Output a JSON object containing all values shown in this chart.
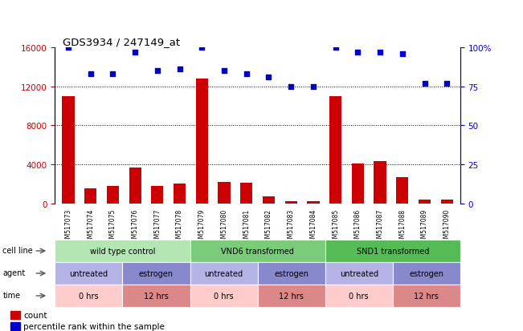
{
  "title": "GDS3934 / 247149_at",
  "samples": [
    "GSM517073",
    "GSM517074",
    "GSM517075",
    "GSM517076",
    "GSM517077",
    "GSM517078",
    "GSM517079",
    "GSM517080",
    "GSM517081",
    "GSM517082",
    "GSM517083",
    "GSM517084",
    "GSM517085",
    "GSM517086",
    "GSM517087",
    "GSM517088",
    "GSM517089",
    "GSM517090"
  ],
  "counts": [
    11000,
    1500,
    1800,
    3700,
    1800,
    2000,
    12800,
    2200,
    2100,
    700,
    200,
    250,
    11000,
    4100,
    4300,
    2700,
    350,
    400
  ],
  "percentile": [
    100,
    83,
    83,
    97,
    85,
    86,
    100,
    85,
    83,
    81,
    75,
    75,
    100,
    97,
    97,
    96,
    77,
    77
  ],
  "bar_color": "#cc0000",
  "dot_color": "#0000cc",
  "ylim_left": [
    0,
    16000
  ],
  "ylim_right": [
    0,
    100
  ],
  "yticks_left": [
    0,
    4000,
    8000,
    12000,
    16000
  ],
  "yticks_right": [
    0,
    25,
    50,
    75,
    100
  ],
  "yticklabels_right": [
    "0",
    "25",
    "50",
    "75",
    "100%"
  ],
  "cell_line_groups": [
    {
      "label": "wild type control",
      "start": 0,
      "end": 6,
      "color": "#b3e6b3"
    },
    {
      "label": "VND6 transformed",
      "start": 6,
      "end": 12,
      "color": "#7acc7a"
    },
    {
      "label": "SND1 transformed",
      "start": 12,
      "end": 18,
      "color": "#55bb55"
    }
  ],
  "agent_groups": [
    {
      "label": "untreated",
      "start": 0,
      "end": 3,
      "color": "#b3b3e6"
    },
    {
      "label": "estrogen",
      "start": 3,
      "end": 6,
      "color": "#8888cc"
    },
    {
      "label": "untreated",
      "start": 6,
      "end": 9,
      "color": "#b3b3e6"
    },
    {
      "label": "estrogen",
      "start": 9,
      "end": 12,
      "color": "#8888cc"
    },
    {
      "label": "untreated",
      "start": 12,
      "end": 15,
      "color": "#b3b3e6"
    },
    {
      "label": "estrogen",
      "start": 15,
      "end": 18,
      "color": "#8888cc"
    }
  ],
  "time_groups": [
    {
      "label": "0 hrs",
      "start": 0,
      "end": 3,
      "color": "#ffcccc"
    },
    {
      "label": "12 hrs",
      "start": 3,
      "end": 6,
      "color": "#dd8888"
    },
    {
      "label": "0 hrs",
      "start": 6,
      "end": 9,
      "color": "#ffcccc"
    },
    {
      "label": "12 hrs",
      "start": 9,
      "end": 12,
      "color": "#dd8888"
    },
    {
      "label": "0 hrs",
      "start": 12,
      "end": 15,
      "color": "#ffcccc"
    },
    {
      "label": "12 hrs",
      "start": 15,
      "end": 18,
      "color": "#dd8888"
    }
  ],
  "left_axis_color": "#cc0000",
  "right_axis_color": "#0000cc",
  "bg_color": "#ffffff",
  "plot_bg_color": "#ffffff"
}
